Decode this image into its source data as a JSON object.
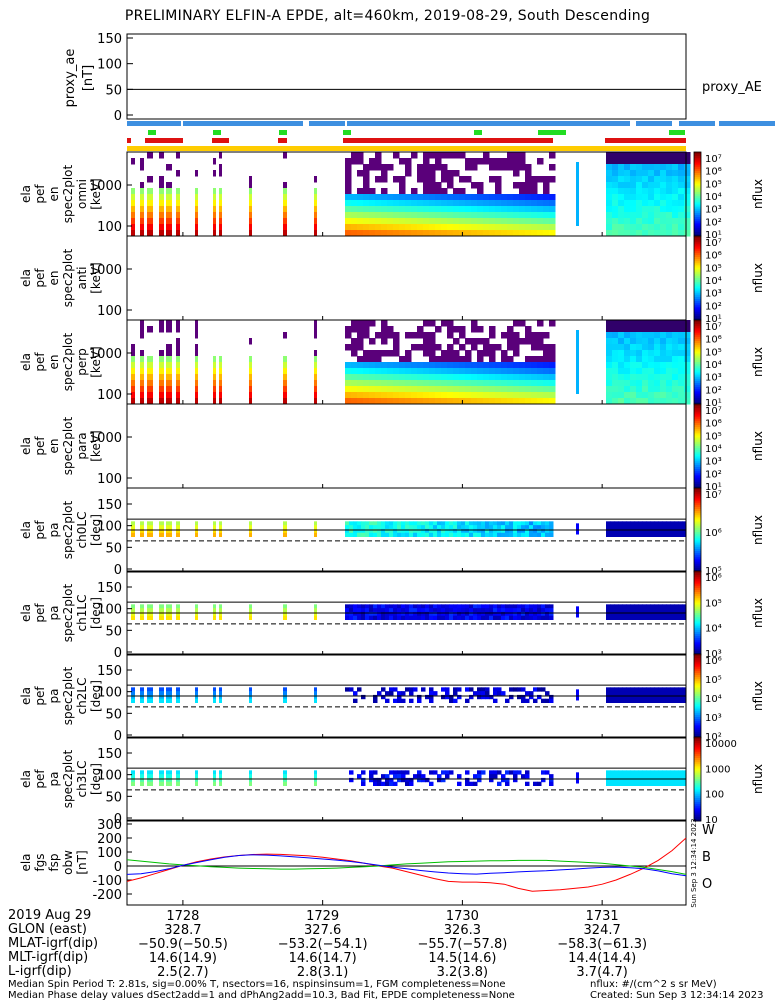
{
  "title": "PRELIMINARY ELFIN-A EPDE, alt=460km, 2019-08-29, South Descending",
  "proxy_label": "proxy_AE",
  "panels": [
    {
      "ylabel": [
        "ela",
        "pef",
        "en",
        "spec2plot",
        "omni",
        "[keV]"
      ],
      "ylabel_short": "omni",
      "unit": "[keV]",
      "yticks": [
        "1000",
        "100"
      ],
      "cbar_label": "nflux",
      "cbar_ticks": [
        "10⁷",
        "10⁶",
        "10⁵",
        "10⁴",
        "10³",
        "10²",
        "10¹"
      ]
    },
    {
      "ylabel": [
        "ela",
        "pef",
        "en",
        "spec2plot",
        "anti",
        "[keV]"
      ],
      "ylabel_short": "anti",
      "unit": "[keV]",
      "yticks": [
        "1000",
        "100"
      ],
      "cbar_label": "nflux",
      "cbar_ticks": [
        "10⁷",
        "10⁶",
        "10⁵",
        "10⁴",
        "10³",
        "10²",
        "10¹"
      ]
    },
    {
      "ylabel": [
        "ela",
        "pef",
        "en",
        "spec2plot",
        "perp",
        "[keV]"
      ],
      "ylabel_short": "perp",
      "unit": "[keV]",
      "yticks": [
        "1000",
        "100"
      ],
      "cbar_label": "nflux",
      "cbar_ticks": [
        "10⁷",
        "10⁶",
        "10⁵",
        "10⁴",
        "10³",
        "10²",
        "10¹"
      ]
    },
    {
      "ylabel": [
        "ela",
        "pef",
        "en",
        "spec2plot",
        "para",
        "[keV]"
      ],
      "ylabel_short": "para",
      "unit": "[keV]",
      "yticks": [
        "1000",
        "100"
      ],
      "cbar_label": "nflux",
      "cbar_ticks": [
        "10⁷",
        "10⁶",
        "10⁵",
        "10⁴",
        "10³",
        "10²",
        "10¹"
      ]
    },
    {
      "ylabel": [
        "ela",
        "pef",
        "pa",
        "spec2plot",
        "ch0LC",
        "[deg]"
      ],
      "ylabel_short": "ch0LC",
      "unit": "[deg]",
      "yticks": [
        "150",
        "100",
        "50",
        "0"
      ],
      "cbar_label": "nflux",
      "cbar_ticks": [
        "10⁷",
        "10⁶",
        "10⁵"
      ]
    },
    {
      "ylabel": [
        "ela",
        "pef",
        "pa",
        "spec2plot",
        "ch1LC",
        "[deg]"
      ],
      "ylabel_short": "ch1LC",
      "unit": "[deg]",
      "yticks": [
        "150",
        "100",
        "50",
        "0"
      ],
      "cbar_label": "nflux",
      "cbar_ticks": [
        "10⁶",
        "10⁵",
        "10⁴",
        "10³"
      ]
    },
    {
      "ylabel": [
        "ela",
        "pef",
        "pa",
        "spec2plot",
        "ch2LC",
        "[deg]"
      ],
      "ylabel_short": "ch2LC",
      "unit": "[deg]",
      "yticks": [
        "150",
        "100",
        "50",
        "0"
      ],
      "cbar_label": "nflux",
      "cbar_ticks": [
        "10⁶",
        "10⁵",
        "10⁴",
        "10³",
        "10²"
      ]
    },
    {
      "ylabel": [
        "ela",
        "pef",
        "pa",
        "spec2plot",
        "ch3LC",
        "[deg]"
      ],
      "ylabel_short": "ch3LC",
      "unit": "[deg]",
      "yticks": [
        "150",
        "100",
        "50",
        "0"
      ],
      "cbar_label": "nflux",
      "cbar_ticks": [
        "10000",
        "1000",
        "100",
        "10"
      ]
    }
  ],
  "top_panel": {
    "ylabel": [
      "proxy_ae",
      "[nT]"
    ],
    "yticks": [
      "150",
      "100",
      "50",
      "0"
    ]
  },
  "bottom_panel": {
    "ylabel": [
      "ela",
      "fgs",
      "fsp",
      "obw",
      "[nT]"
    ],
    "yticks": [
      "300",
      "200",
      "100",
      "0",
      "-100",
      "-200"
    ],
    "legend": [
      {
        "name": "W",
        "color": "#ff0000"
      },
      {
        "name": "B",
        "color": "#00c000"
      },
      {
        "name": "O",
        "color": "#0000ff"
      }
    ],
    "side_stamp": "Sun Sep 3 12:34:14 2023"
  },
  "chart_data": [
    {
      "type": "line",
      "title": "proxy_ae",
      "ylabel": "[nT]",
      "ylim": [
        0,
        150
      ],
      "x": [
        1727.6,
        1731.6
      ],
      "series": [
        {
          "name": "proxy_AE",
          "values": [
            50,
            50
          ]
        }
      ]
    },
    {
      "type": "heatmap",
      "ylabel": "omni [keV]",
      "yscale": "log",
      "ylim": [
        60,
        6000
      ],
      "zlabel": "nflux",
      "zlim": [
        10,
        10000000
      ]
    },
    {
      "type": "heatmap",
      "ylabel": "anti [keV]",
      "yscale": "log",
      "ylim": [
        60,
        6000
      ],
      "zlabel": "nflux",
      "zlim": [
        10,
        10000000
      ]
    },
    {
      "type": "heatmap",
      "ylabel": "perp [keV]",
      "yscale": "log",
      "ylim": [
        60,
        6000
      ],
      "zlabel": "nflux",
      "zlim": [
        10,
        10000000
      ]
    },
    {
      "type": "heatmap",
      "ylabel": "para [keV]",
      "yscale": "log",
      "ylim": [
        60,
        6000
      ],
      "zlabel": "nflux",
      "zlim": [
        10,
        10000000
      ]
    },
    {
      "type": "heatmap",
      "ylabel": "ch0LC [deg]",
      "ylim": [
        0,
        180
      ],
      "zlabel": "nflux",
      "zlim": [
        10000,
        10000000
      ]
    },
    {
      "type": "heatmap",
      "ylabel": "ch1LC [deg]",
      "ylim": [
        0,
        180
      ],
      "zlabel": "nflux",
      "zlim": [
        1000,
        1000000
      ]
    },
    {
      "type": "heatmap",
      "ylabel": "ch2LC [deg]",
      "ylim": [
        0,
        180
      ],
      "zlabel": "nflux",
      "zlim": [
        100,
        1000000
      ]
    },
    {
      "type": "heatmap",
      "ylabel": "ch3LC [deg]",
      "ylim": [
        0,
        180
      ],
      "zlabel": "nflux",
      "zlim": [
        10,
        10000
      ]
    },
    {
      "type": "line",
      "ylabel": "obw [nT]",
      "ylim": [
        -250,
        300
      ],
      "x": [
        1727.6,
        1727.7,
        1727.8,
        1727.9,
        1728.0,
        1728.1,
        1728.2,
        1728.3,
        1728.4,
        1728.5,
        1728.6,
        1728.7,
        1728.8,
        1728.9,
        1729.0,
        1729.1,
        1729.2,
        1729.3,
        1729.4,
        1729.5,
        1729.6,
        1729.7,
        1729.8,
        1729.9,
        1730.0,
        1730.1,
        1730.2,
        1730.3,
        1730.4,
        1730.5,
        1730.6,
        1730.7,
        1730.8,
        1730.9,
        1731.0,
        1731.1,
        1731.2,
        1731.3,
        1731.4,
        1731.5,
        1731.6
      ],
      "series": [
        {
          "name": "W",
          "color": "#ff0000",
          "values": [
            -110,
            -85,
            -55,
            -25,
            5,
            30,
            50,
            65,
            75,
            82,
            85,
            83,
            78,
            72,
            62,
            50,
            38,
            20,
            0,
            -15,
            -40,
            -65,
            -90,
            -110,
            -115,
            -115,
            -120,
            -130,
            -160,
            -180,
            -175,
            -170,
            -160,
            -150,
            -130,
            -100,
            -60,
            -15,
            40,
            110,
            200
          ]
        },
        {
          "name": "B",
          "color": "#00c000",
          "values": [
            45,
            35,
            25,
            15,
            8,
            2,
            -5,
            -10,
            -15,
            -18,
            -20,
            -22,
            -22,
            -20,
            -18,
            -15,
            -10,
            -5,
            0,
            8,
            15,
            20,
            25,
            30,
            32,
            35,
            38,
            38,
            40,
            40,
            40,
            35,
            30,
            25,
            20,
            10,
            0,
            -10,
            -25,
            -40,
            -60
          ]
        },
        {
          "name": "O",
          "color": "#0000ff",
          "values": [
            -60,
            -55,
            -40,
            -20,
            5,
            25,
            45,
            62,
            75,
            80,
            78,
            72,
            65,
            58,
            50,
            42,
            32,
            20,
            5,
            -8,
            -20,
            -32,
            -42,
            -50,
            -55,
            -58,
            -52,
            -48,
            -42,
            -38,
            -34,
            -28,
            -22,
            -15,
            -10,
            -8,
            -12,
            -20,
            -35,
            -55,
            -70
          ]
        }
      ]
    }
  ],
  "time_axis": {
    "date": "2019 Aug 29",
    "ticks": [
      "1728",
      "1729",
      "1730",
      "1731"
    ],
    "rows": [
      {
        "label": "GLON (east)",
        "values": [
          "328.7",
          "327.6",
          "326.3",
          "324.7"
        ]
      },
      {
        "label": "MLAT-igrf(dip)",
        "values": [
          "−50.9(−50.5)",
          "−53.2(−54.1)",
          "−55.7(−57.8)",
          "−58.3(−61.3)"
        ]
      },
      {
        "label": "MLT-igrf(dip)",
        "values": [
          "14.6(14.9)",
          "14.6(14.7)",
          "14.5(14.6)",
          "14.4(14.4)"
        ]
      },
      {
        "label": "L-igrf(dip)",
        "values": [
          "2.5(2.7)",
          "2.8(3.1)",
          "3.2(3.8)",
          "3.7(4.7)"
        ]
      }
    ]
  },
  "footer": {
    "line1": "Median Spin Period T: 2.81s, sig=0.00% T, nsectors=16, nspinsinsum=1, FGM completeness=None",
    "line2": "Median Phase delay values dSect2add=1 and dPhAng2add=10.3, Bad Fit, EPDE completeness=None",
    "units": "nflux: #/(cm^2 s sr MeV)",
    "created": "Created: Sun Sep  3 12:34:14 2023"
  },
  "colors": {
    "blue_bar": "#3d8fe0",
    "green_bar": "#22dd22",
    "red_bar": "#dd1111",
    "yellow_bar": "#ffcc00"
  }
}
